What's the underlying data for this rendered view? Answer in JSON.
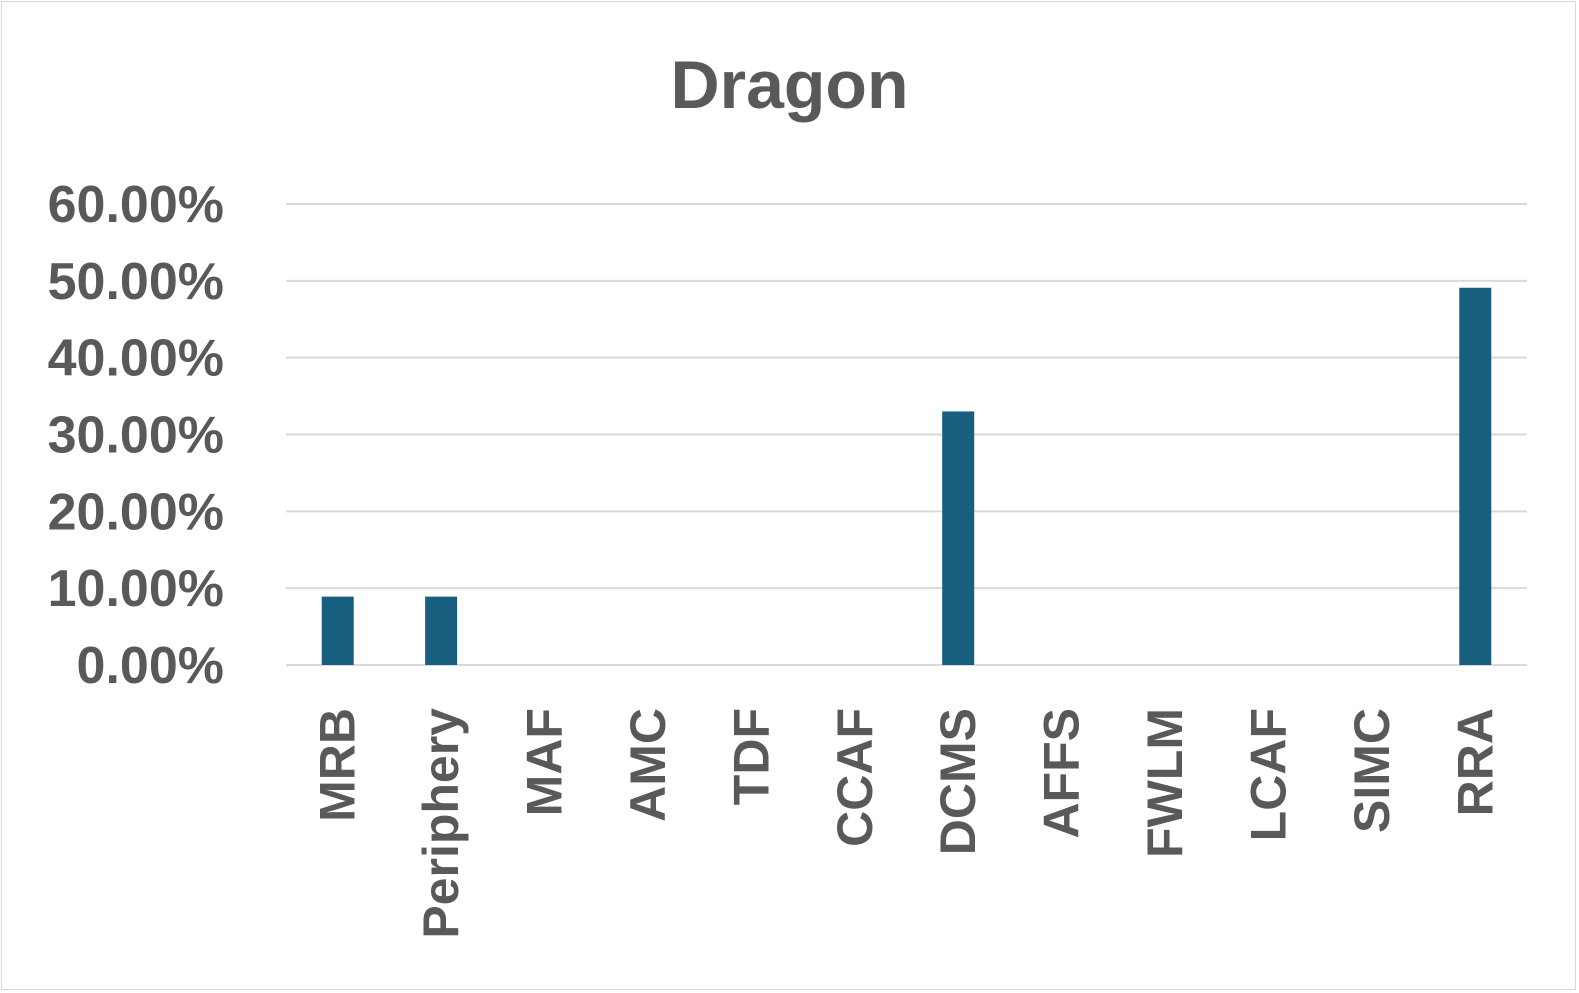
{
  "chart_data": {
    "type": "bar",
    "title": "Dragon",
    "xlabel": "",
    "ylabel": "",
    "categories": [
      "MRB",
      "Periphery",
      "MAF",
      "AMC",
      "TDF",
      "CCAF",
      "DCMS",
      "AFFS",
      "FWLM",
      "LCAF",
      "SIMC",
      "RRA"
    ],
    "values": [
      8.9,
      8.9,
      0,
      0,
      0,
      0,
      33.0,
      0,
      0,
      0,
      0,
      49.1
    ],
    "ylim": [
      0,
      60
    ],
    "yticks": [
      0,
      10,
      20,
      30,
      40,
      50,
      60
    ],
    "ytick_labels": [
      "0.00%",
      "10.00%",
      "20.00%",
      "30.00%",
      "40.00%",
      "50.00%",
      "60.00%"
    ],
    "grid": true,
    "legend": "none",
    "colors": {
      "bar": "#175e7f",
      "grid": "#d9d9d9",
      "text": "#595959"
    }
  }
}
